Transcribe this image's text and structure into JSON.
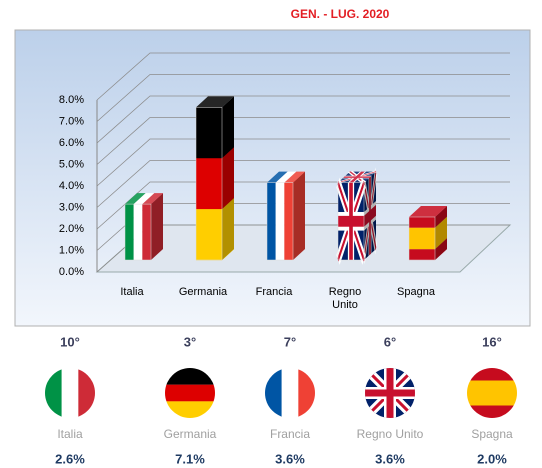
{
  "chart_data": {
    "type": "bar3d",
    "title": "GEN. - LUG. 2020",
    "categories": [
      "Italia",
      "Germania",
      "Francia",
      "Regno Unito",
      "Spagna"
    ],
    "values": [
      2.6,
      7.1,
      3.6,
      3.6,
      2.0
    ],
    "value_labels": [
      "2.6%",
      "7.1%",
      "3.6%",
      "3.6%",
      "2.0%"
    ],
    "ranks": [
      "10°",
      "3°",
      "7°",
      "6°",
      "16°"
    ],
    "ylim": [
      0,
      8
    ],
    "yticks": [
      {
        "value": 0,
        "label": "0.0%"
      },
      {
        "value": 1,
        "label": "1.0%"
      },
      {
        "value": 2,
        "label": "2.0%"
      },
      {
        "value": 3,
        "label": "3.0%"
      },
      {
        "value": 4,
        "label": "4.0%"
      },
      {
        "value": 5,
        "label": "5.0%"
      },
      {
        "value": 6,
        "label": "6.0%"
      },
      {
        "value": 7,
        "label": "7.0%"
      },
      {
        "value": 8,
        "label": "8.0%"
      }
    ],
    "grid": true
  }
}
